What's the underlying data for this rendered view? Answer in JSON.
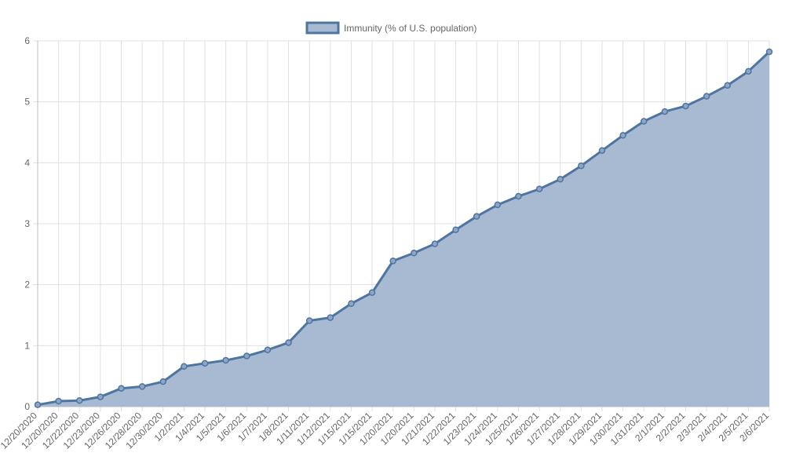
{
  "chart_data": {
    "type": "area",
    "legend": {
      "position": "top-center",
      "label": "Immunity (% of U.S. population)"
    },
    "colors": {
      "line": "#4e74a2",
      "fill": "#a8bad2",
      "grid": "#e0e0e0",
      "text": "#666666"
    },
    "grid": true,
    "ylim": [
      0,
      6
    ],
    "yticks": [
      "0",
      "1",
      "2",
      "3",
      "4",
      "5",
      "6"
    ],
    "categories": [
      "12/20/2020",
      "12/20/2020",
      "12/22/2020",
      "12/23/2020",
      "12/26/2020",
      "12/28/2020",
      "12/30/2020",
      "1/2/2021",
      "1/4/2021",
      "1/5/2021",
      "1/6/2021",
      "1/7/2021",
      "1/8/2021",
      "1/11/2021",
      "1/12/2021",
      "1/15/2021",
      "1/15/2021",
      "1/20/2021",
      "1/20/2021",
      "1/21/2021",
      "1/22/2021",
      "1/23/2021",
      "1/24/2021",
      "1/25/2021",
      "1/26/2021",
      "1/27/2021",
      "1/28/2021",
      "1/29/2021",
      "1/30/2021",
      "1/31/2021",
      "2/1/2021",
      "2/2/2021",
      "2/3/2021",
      "2/4/2021",
      "2/5/2021",
      "2/6/2021"
    ],
    "series": [
      {
        "name": "Immunity (% of U.S. population)",
        "values": [
          0.03,
          0.09,
          0.1,
          0.16,
          0.3,
          0.33,
          0.41,
          0.66,
          0.71,
          0.76,
          0.83,
          0.93,
          1.05,
          1.41,
          1.46,
          1.69,
          1.87,
          2.39,
          2.52,
          2.67,
          2.9,
          3.12,
          3.31,
          3.45,
          3.57,
          3.73,
          3.95,
          4.2,
          4.45,
          4.68,
          4.84,
          4.93,
          5.09,
          5.27,
          5.5,
          5.82
        ]
      }
    ]
  }
}
